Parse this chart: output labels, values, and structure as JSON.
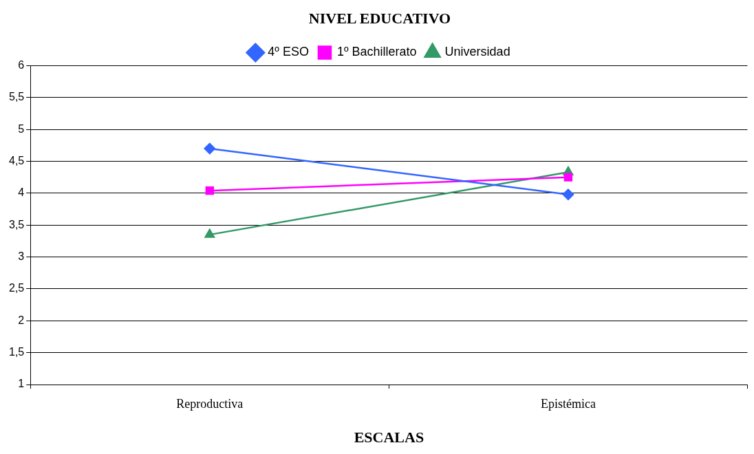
{
  "chart_data": {
    "type": "line",
    "title": "NIVEL EDUCATIVO",
    "xlabel": "ESCALAS",
    "categories": [
      "Reproductiva",
      "Epistémica"
    ],
    "series": [
      {
        "name": "4º ESO",
        "color": "#3366ff",
        "marker": "diamond",
        "values": [
          4.7,
          3.98
        ]
      },
      {
        "name": "1º Bachillerato",
        "color": "#ff00ff",
        "marker": "square",
        "values": [
          4.04,
          4.25
        ]
      },
      {
        "name": "Universidad",
        "color": "#339966",
        "marker": "triangle",
        "values": [
          3.35,
          4.33
        ]
      }
    ],
    "ylim": [
      1,
      6
    ],
    "yticks": [
      1,
      {
        "value": 1.5,
        "label": "1,5"
      },
      2,
      {
        "value": 2.5,
        "label": "2,5"
      },
      3,
      {
        "value": 3.5,
        "label": "3,5"
      },
      4,
      {
        "value": 4.5,
        "label": "4,5"
      },
      5,
      {
        "value": 5.5,
        "label": "5,5"
      },
      6
    ],
    "grid": "y",
    "legend": "top",
    "line_style": "solid"
  }
}
